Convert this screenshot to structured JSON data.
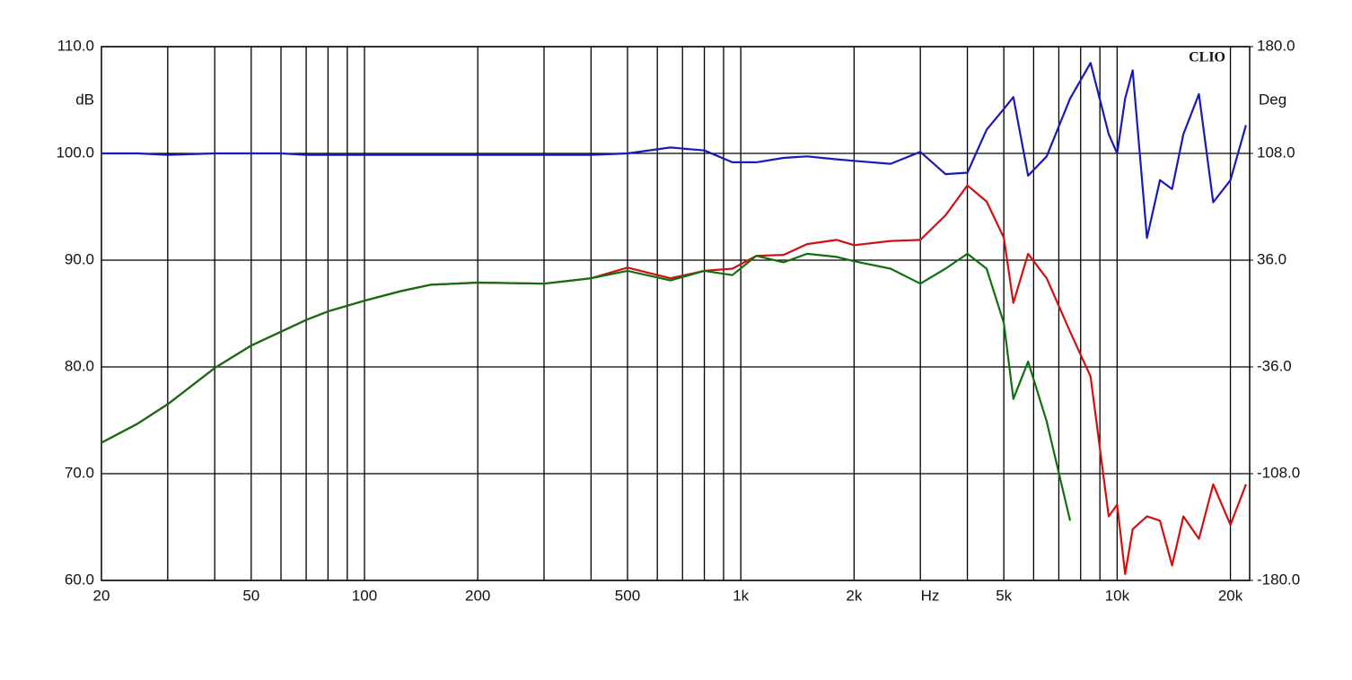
{
  "chart_data": {
    "type": "line",
    "brand": "CLIO",
    "xlabel": "Hz",
    "ylabel": "dB",
    "y2label": "Deg",
    "xscale": "log",
    "grid": true,
    "xlim": [
      20,
      22500
    ],
    "ylim": [
      60,
      110
    ],
    "y2lim": [
      -180,
      180
    ],
    "xticks": [
      20,
      50,
      100,
      200,
      500,
      {
        "value": 1000,
        "label": "1k"
      },
      {
        "value": 2000,
        "label": "2k"
      },
      {
        "value": 5000,
        "label": "5k"
      },
      {
        "value": 10000,
        "label": "10k"
      },
      {
        "value": 20000,
        "label": "20k"
      }
    ],
    "xgrid": [
      30,
      40,
      50,
      60,
      70,
      80,
      90,
      100,
      200,
      300,
      400,
      500,
      600,
      700,
      800,
      900,
      1000,
      2000,
      3000,
      4000,
      5000,
      6000,
      7000,
      8000,
      9000,
      10000,
      20000
    ],
    "yticks": [
      {
        "value": 60,
        "label": "60.0"
      },
      {
        "value": 70,
        "label": "70.0"
      },
      {
        "value": 80,
        "label": "80.0"
      },
      {
        "value": 90,
        "label": "90.0"
      },
      {
        "value": 100,
        "label": "100.0"
      },
      {
        "value": 110,
        "label": "110.0"
      }
    ],
    "y2ticks": [
      {
        "value": -180,
        "label": "-180.0"
      },
      {
        "value": -108,
        "label": "-108.0"
      },
      {
        "value": -36,
        "label": "-36.0"
      },
      {
        "value": 36,
        "label": "36.0"
      },
      {
        "value": 108,
        "label": "108.0"
      },
      {
        "value": 180,
        "label": "180.0"
      }
    ],
    "x": [
      20,
      25,
      30,
      40,
      50,
      60,
      70,
      80,
      100,
      125,
      150,
      200,
      300,
      400,
      500,
      650,
      800,
      950,
      1100,
      1300,
      1500,
      1800,
      2000,
      2500,
      3000,
      3500,
      4000,
      4500,
      5000,
      5300,
      5800,
      6500,
      7500,
      8500,
      9500,
      10000,
      10500,
      11000,
      12000,
      13000,
      14000,
      15000,
      16500,
      18000,
      20000,
      22000
    ],
    "series": [
      {
        "color": "#1a1ab4",
        "axis": "y2",
        "values": [
          108,
          108,
          107,
          108,
          108,
          108,
          107,
          107,
          107,
          107,
          107,
          107,
          107,
          107,
          108,
          112,
          110,
          102,
          102,
          105,
          106,
          104,
          103,
          101,
          109,
          94,
          95,
          124,
          138,
          146,
          93,
          106,
          145,
          169,
          121,
          108,
          145,
          164,
          51,
          90,
          84,
          121,
          148,
          75,
          90,
          127
        ]
      },
      {
        "color": "#d01010",
        "values": [
          72.9,
          74.7,
          76.5,
          79.9,
          82.0,
          83.3,
          84.4,
          85.2,
          86.2,
          87.1,
          87.7,
          87.9,
          87.8,
          88.3,
          89.3,
          88.3,
          89.0,
          89.2,
          90.4,
          90.5,
          91.5,
          91.9,
          91.4,
          91.8,
          91.9,
          94.2,
          97.0,
          95.5,
          92.1,
          86.0,
          90.6,
          88.3,
          83.3,
          79.1,
          66.0,
          67.1,
          60.6,
          64.8,
          66.0,
          65.6,
          61.4,
          66.0,
          63.9,
          69.0,
          65.2,
          69.0
        ]
      },
      {
        "color": "#107010",
        "values": [
          72.9,
          74.7,
          76.5,
          79.9,
          82.0,
          83.3,
          84.4,
          85.2,
          86.2,
          87.1,
          87.7,
          87.9,
          87.8,
          88.3,
          89.0,
          88.1,
          89.0,
          88.6,
          90.4,
          89.8,
          90.6,
          90.3,
          89.9,
          89.2,
          87.8,
          89.2,
          90.6,
          89.2,
          84.1,
          77.0,
          80.5,
          74.9,
          65.6,
          null,
          null,
          null,
          null,
          null,
          null,
          null,
          null,
          null,
          null,
          null,
          null,
          null
        ]
      }
    ]
  }
}
